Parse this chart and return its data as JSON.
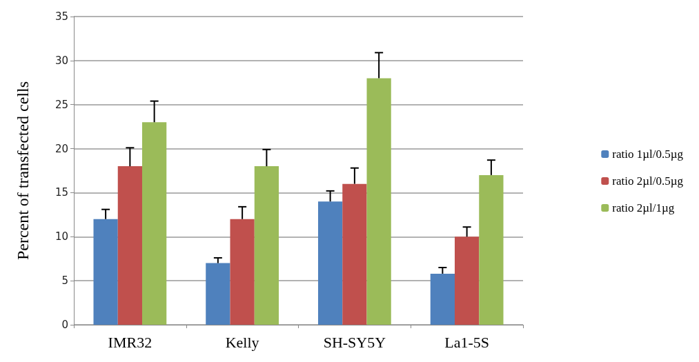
{
  "chart_data": {
    "type": "bar",
    "ylabel": "Percent of transfected cells",
    "categories": [
      "IMR32",
      "Kelly",
      "SH-SY5Y",
      "La1-5S"
    ],
    "series": [
      {
        "name": "ratio 1µl/0.5µg",
        "color": "#4f81bd",
        "values": [
          12,
          7,
          14,
          5.8
        ],
        "errors": [
          [
            12,
            13.1
          ],
          [
            7,
            7.6
          ],
          [
            14,
            15.2
          ],
          [
            5.8,
            6.5
          ]
        ]
      },
      {
        "name": "ratio 2µl/0.5µg",
        "color": "#c0504d",
        "values": [
          18,
          12,
          16,
          10
        ],
        "errors": [
          [
            18,
            20.1
          ],
          [
            12,
            13.4
          ],
          [
            16,
            17.8
          ],
          [
            10,
            11.1
          ]
        ]
      },
      {
        "name": "ratio 2µl/1µg",
        "color": "#9bbb59",
        "values": [
          23,
          18,
          28,
          17
        ],
        "errors": [
          [
            23,
            25.4
          ],
          [
            18,
            19.9
          ],
          [
            28,
            30.9
          ],
          [
            17,
            18.7
          ]
        ]
      }
    ],
    "ylim": [
      0,
      35
    ],
    "yticks": [
      0,
      5,
      10,
      15,
      20,
      25,
      30,
      35
    ],
    "grid": "y",
    "legend": "right"
  }
}
